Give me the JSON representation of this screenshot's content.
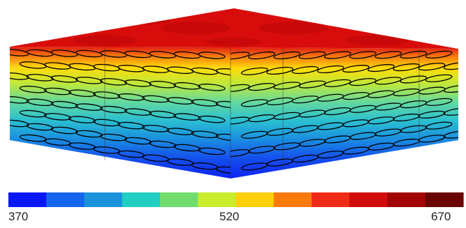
{
  "colorbar": {
    "min_label": "370",
    "mid_label": "520",
    "max_label": "670",
    "min": 370,
    "max": 670,
    "colors": [
      "#0a18f5",
      "#1565ec",
      "#1a92dc",
      "#21cec1",
      "#72dd6e",
      "#c9ec2c",
      "#fdcf06",
      "#fb7a0e",
      "#ef2a16",
      "#d10b0b",
      "#a20303",
      "#690202"
    ]
  },
  "block": {
    "top_color": "#d90c0c",
    "top_temperature": 650,
    "bottom_temperature": 375,
    "fiber_rows": 8
  }
}
